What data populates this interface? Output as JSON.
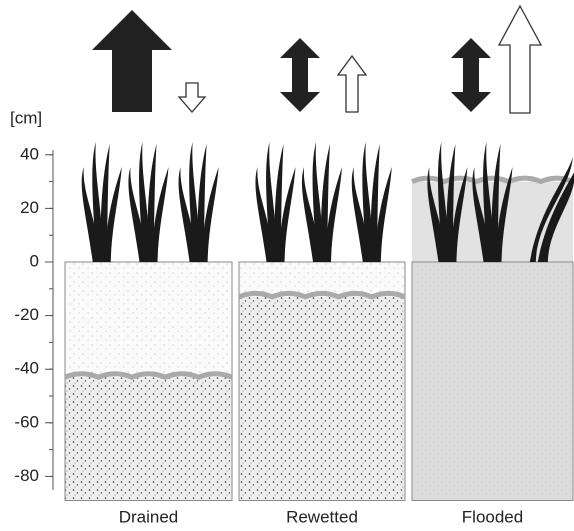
{
  "axis": {
    "unit": "[cm]",
    "ticks": [
      40,
      20,
      0,
      -20,
      -40,
      -60,
      -80
    ],
    "minor_step": 10,
    "lim": [
      -89,
      45
    ]
  },
  "panels": [
    {
      "label": "Drained",
      "water_level": -43
    },
    {
      "label": "Rewetted",
      "water_level": -13
    },
    {
      "label": "Flooded",
      "water_level": 30
    }
  ]
}
